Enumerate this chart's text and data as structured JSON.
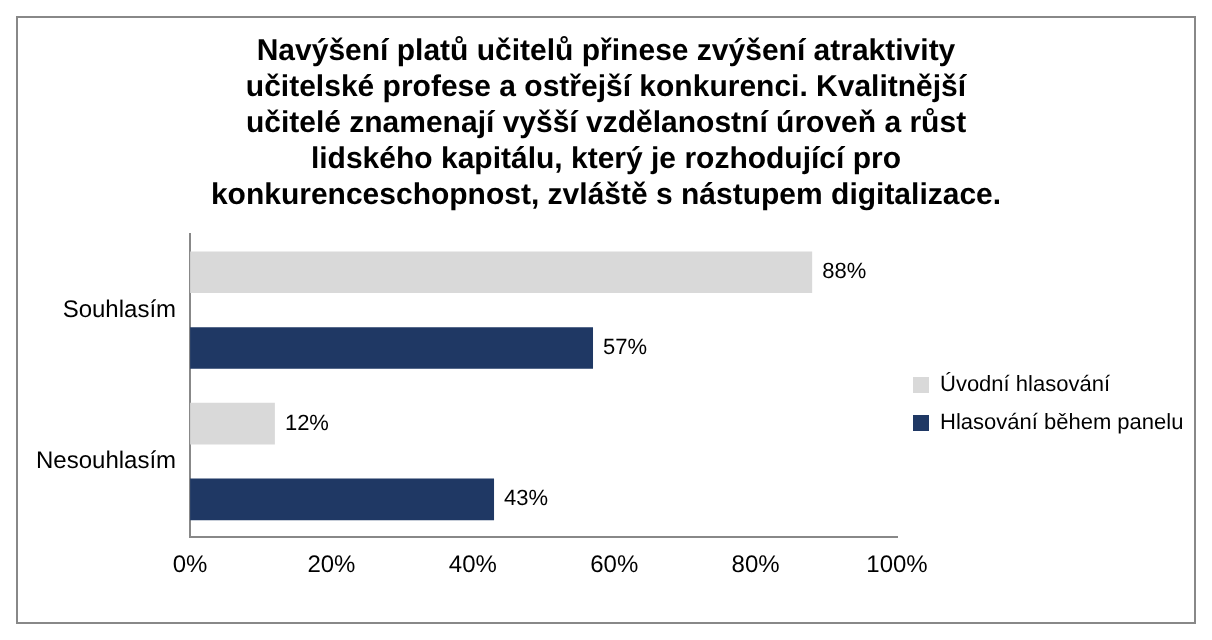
{
  "chart_data": {
    "type": "bar",
    "orientation": "horizontal",
    "title": "Navýšení platů učitelů přinese zvýšení atraktivity učitelské profese a ostřejší konkurenci. Kvalitnější učitelé znamenají vyšší vzdělanostní úroveň a růst lidského kapitálu, který je rozhodující pro konkurenceschopnost, zvláště s nástupem digitalizace.",
    "categories": [
      "Souhlasím",
      "Nesouhlasím"
    ],
    "series": [
      {
        "name": "Úvodní hlasování",
        "color": "#d9d9d9",
        "values": [
          88,
          12
        ],
        "value_labels": [
          "88%",
          "12%"
        ]
      },
      {
        "name": "Hlasování během panelu",
        "color": "#1f3864",
        "values": [
          57,
          43
        ],
        "value_labels": [
          "57%",
          "43%"
        ]
      }
    ],
    "xlim": [
      0,
      100
    ],
    "xticks": [
      {
        "value": 0,
        "label": "0%"
      },
      {
        "value": 20,
        "label": "20%"
      },
      {
        "value": 40,
        "label": "40%"
      },
      {
        "value": 60,
        "label": "60%"
      },
      {
        "value": 80,
        "label": "80%"
      },
      {
        "value": 100,
        "label": "100%"
      }
    ],
    "grid": false,
    "legend": "right"
  }
}
